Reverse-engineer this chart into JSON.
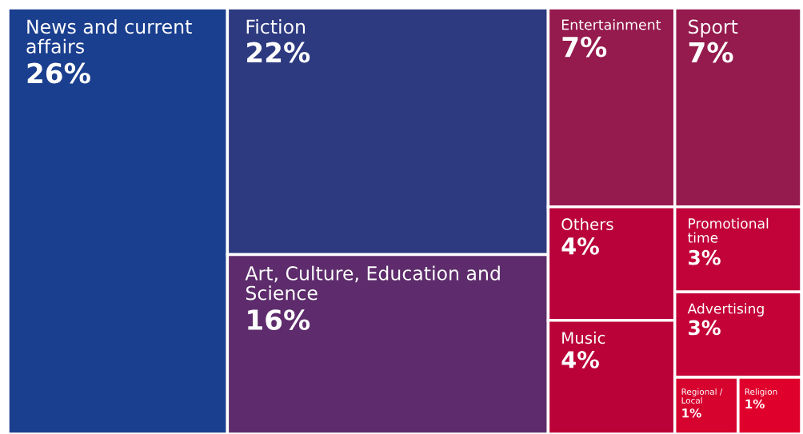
{
  "chart_data": {
    "type": "other",
    "categories": [
      "News and current affairs",
      "Fiction",
      "Art, Culture, Education and Science",
      "Entertainment",
      "Sport",
      "Others",
      "Music",
      "Promotional time",
      "Advertising",
      "Regional / Local",
      "Religion"
    ],
    "values": [
      26,
      22,
      16,
      7,
      7,
      4,
      4,
      3,
      3,
      1,
      1
    ],
    "value_labels": [
      "26%",
      "22%",
      "16%",
      "7%",
      "7%",
      "4%",
      "4%",
      "3%",
      "3%",
      "1%",
      "1%"
    ],
    "colors": [
      "#1b3f8f",
      "#2e3a80",
      "#5e2c6c",
      "#951a4d",
      "#951a4d",
      "#b9023a",
      "#bb0238",
      "#c1033a",
      "#c40238",
      "#d6032f",
      "#e0002c"
    ]
  }
}
